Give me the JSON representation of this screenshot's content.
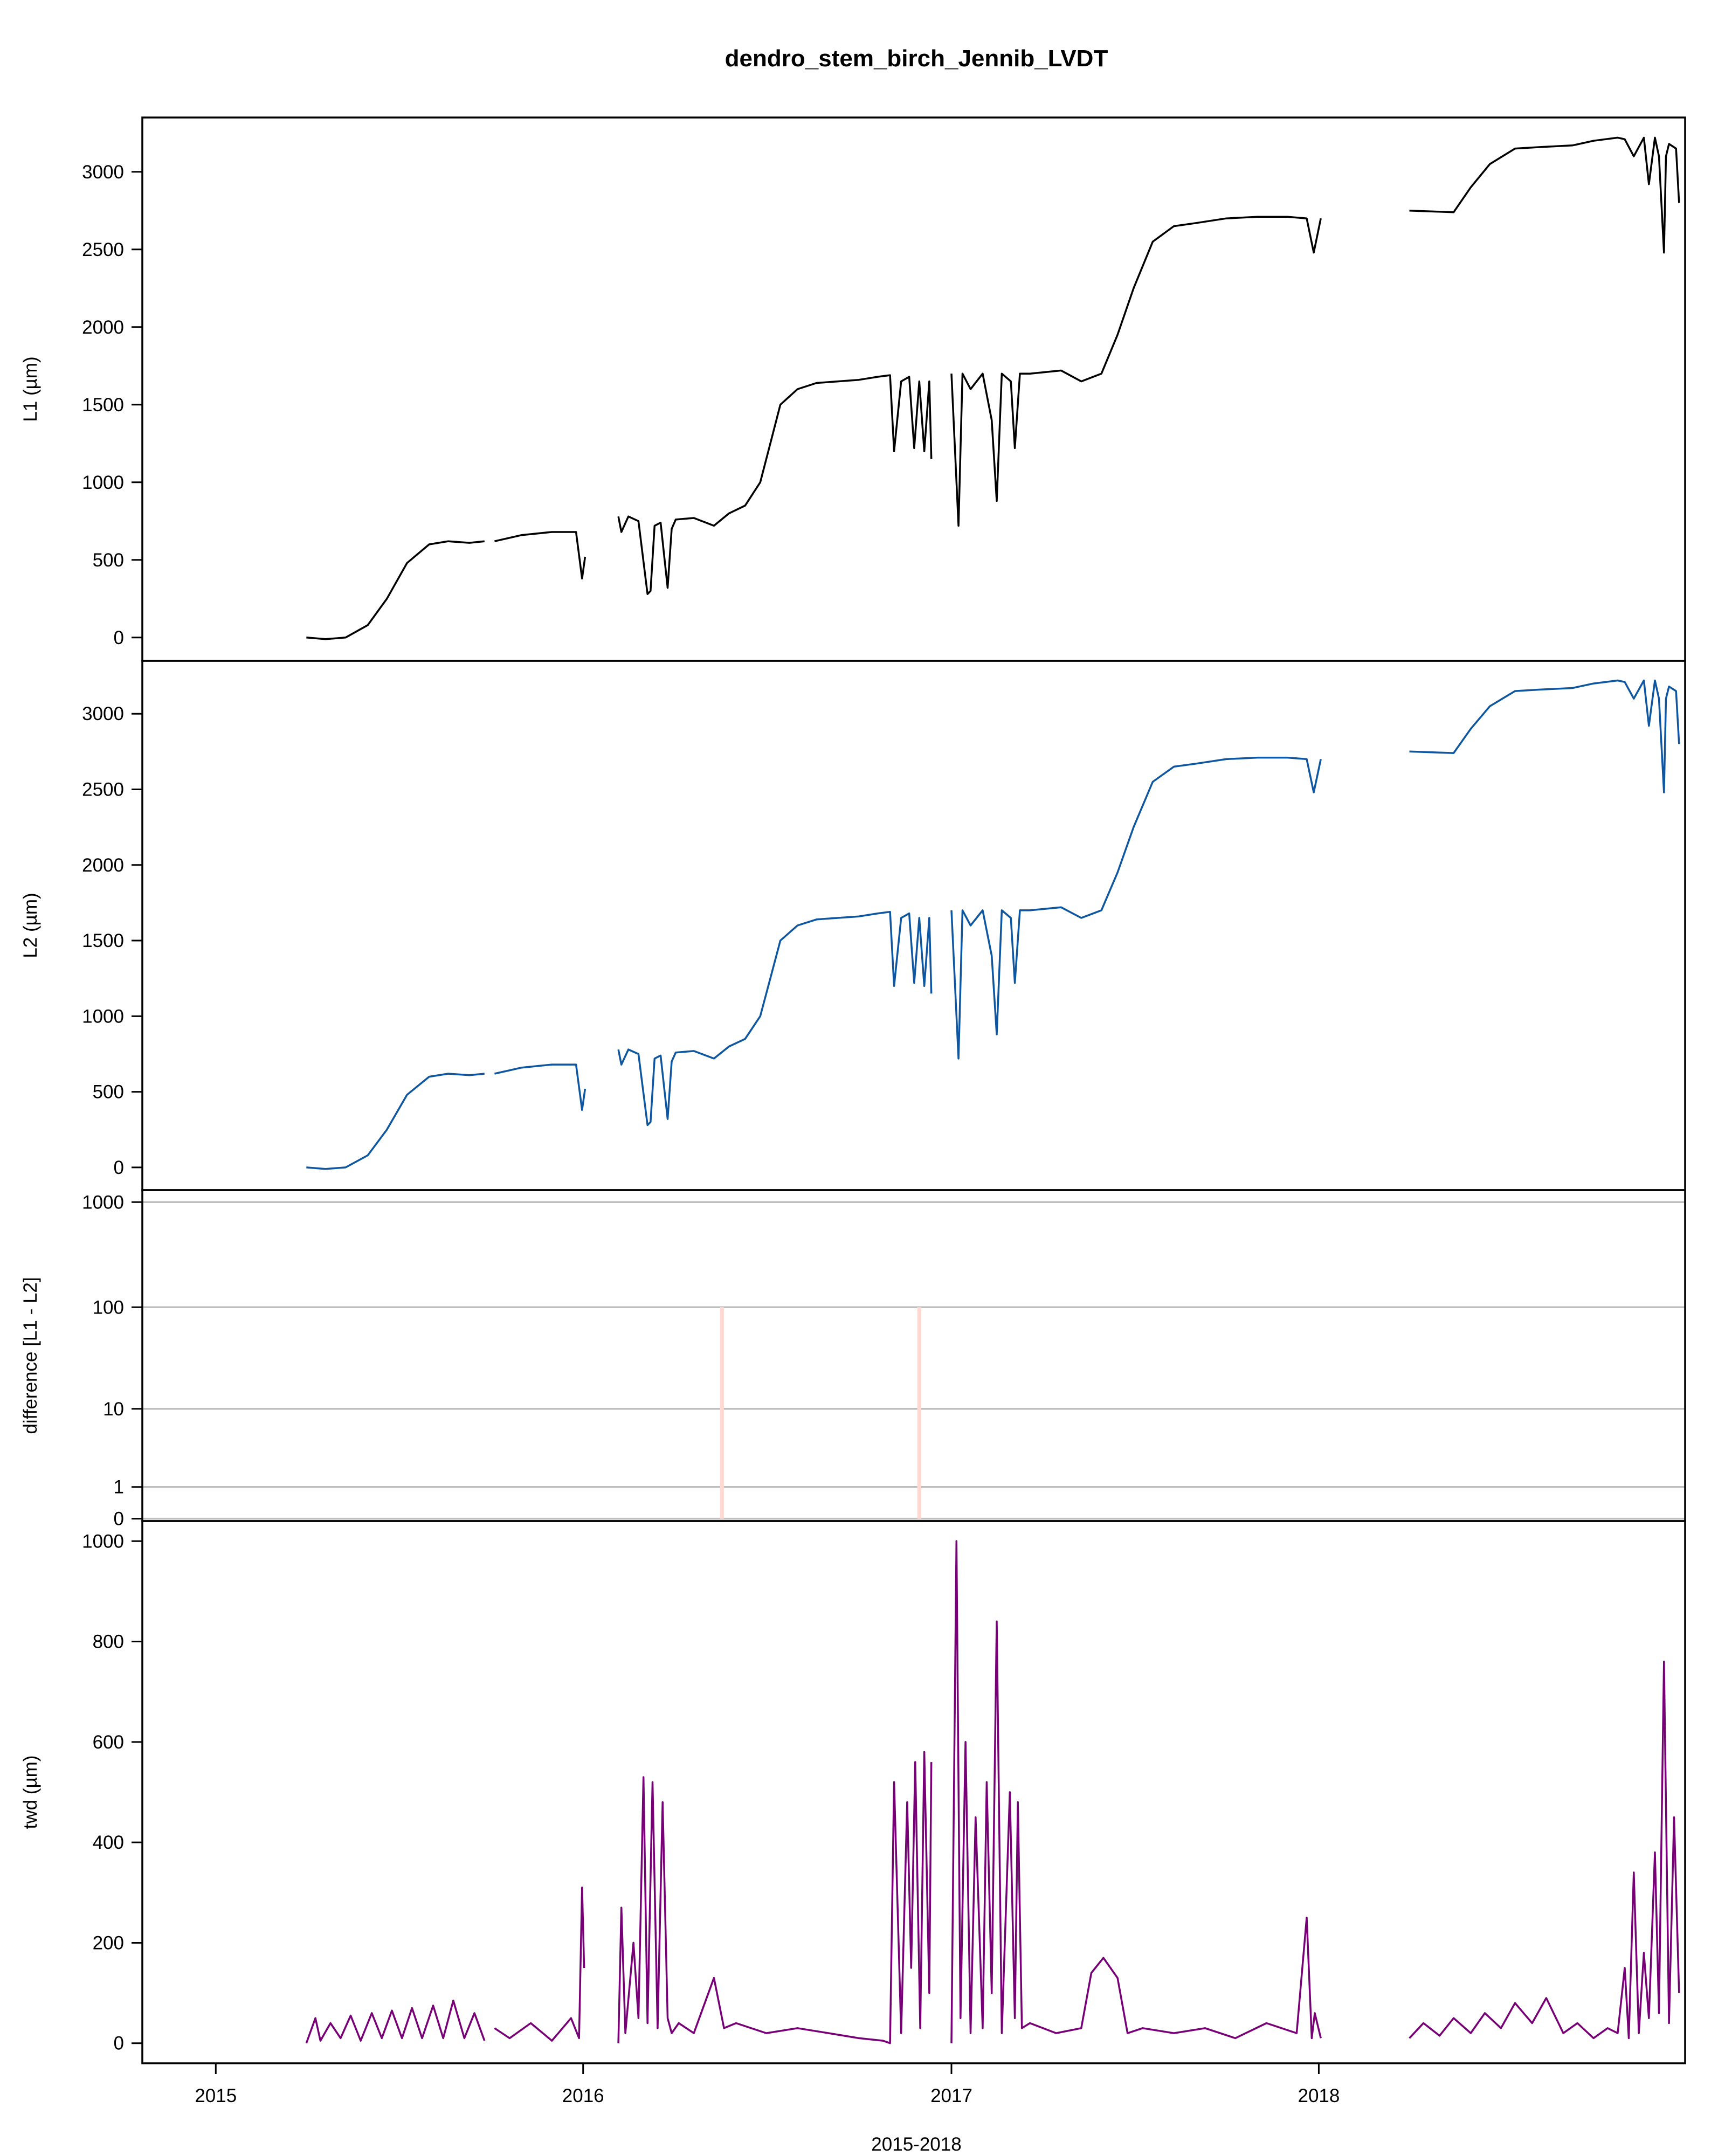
{
  "chart_data": {
    "type": "line",
    "title": "dendro_stem_birch_Jennib_LVDT",
    "xlabel": "2015-2018",
    "x_ticks": [
      "2015",
      "2016",
      "2017",
      "2018"
    ],
    "xlim": [
      "2014-10-20",
      "2018-12-31"
    ],
    "colors": {
      "L1": "#000000",
      "L2": "#0e56a0",
      "difference": "#ffd9d2",
      "twd": "#770077",
      "grid": "#bebebe"
    },
    "panels": [
      {
        "id": "L1",
        "ylabel": "L1 (µm)",
        "ylim": [
          -150,
          3350
        ],
        "y_ticks": [
          0,
          500,
          1000,
          1500,
          2000,
          2500,
          3000
        ],
        "segments": [
          {
            "x": [
              "2015-04-01",
              "2015-04-20",
              "2015-05-10",
              "2015-06-01",
              "2015-06-20",
              "2015-07-10",
              "2015-08-01",
              "2015-08-20",
              "2015-09-10",
              "2015-09-25"
            ],
            "y": [
              0,
              -10,
              0,
              80,
              250,
              480,
              600,
              620,
              610,
              620
            ]
          },
          {
            "x": [
              "2015-10-05",
              "2015-11-01",
              "2015-12-01",
              "2015-12-25",
              "2015-12-31",
              "2016-01-03"
            ],
            "y": [
              620,
              660,
              680,
              680,
              380,
              520
            ]
          },
          {
            "x": [
              "2016-02-05",
              "2016-02-08",
              "2016-02-15",
              "2016-02-25",
              "2016-03-05",
              "2016-03-08",
              "2016-03-12",
              "2016-03-18",
              "2016-03-25",
              "2016-03-29",
              "2016-04-02",
              "2016-04-20",
              "2016-05-10",
              "2016-05-25",
              "2016-06-10",
              "2016-06-25",
              "2016-07-05",
              "2016-07-15",
              "2016-08-01",
              "2016-08-20",
              "2016-09-10",
              "2016-10-01",
              "2016-10-20",
              "2016-11-01",
              "2016-11-05",
              "2016-11-12",
              "2016-11-20",
              "2016-11-25",
              "2016-11-30",
              "2016-12-05",
              "2016-12-10",
              "2016-12-12"
            ],
            "y": [
              780,
              680,
              780,
              750,
              280,
              300,
              720,
              740,
              320,
              700,
              760,
              770,
              720,
              800,
              850,
              1000,
              1250,
              1500,
              1600,
              1640,
              1650,
              1660,
              1680,
              1690,
              1200,
              1650,
              1680,
              1220,
              1650,
              1200,
              1650,
              1150
            ]
          },
          {
            "x": [
              "2017-01-01",
              "2017-01-08",
              "2017-01-12",
              "2017-01-20",
              "2017-02-01",
              "2017-02-10",
              "2017-02-15",
              "2017-02-20",
              "2017-03-01",
              "2017-03-05",
              "2017-03-10",
              "2017-03-20",
              "2017-04-20",
              "2017-05-10",
              "2017-05-30",
              "2017-06-15",
              "2017-07-01",
              "2017-07-20",
              "2017-08-10",
              "2017-09-01",
              "2017-10-01",
              "2017-11-01",
              "2017-12-01",
              "2017-12-20",
              "2017-12-27",
              "2018-01-03"
            ],
            "y": [
              1700,
              720,
              1700,
              1600,
              1700,
              1400,
              880,
              1700,
              1650,
              1220,
              1700,
              1700,
              1720,
              1650,
              1700,
              1950,
              2250,
              2550,
              2650,
              2670,
              2700,
              2710,
              2710,
              2700,
              2480,
              2700
            ]
          },
          {
            "x": [
              "2018-04-01",
              "2018-05-15",
              "2018-06-01",
              "2018-06-20",
              "2018-07-15",
              "2018-08-10",
              "2018-09-10",
              "2018-10-01",
              "2018-10-25",
              "2018-11-01",
              "2018-11-10",
              "2018-11-20",
              "2018-11-25",
              "2018-12-01",
              "2018-12-05",
              "2018-12-10",
              "2018-12-12",
              "2018-12-15",
              "2018-12-22",
              "2018-12-25"
            ],
            "y": [
              2750,
              2740,
              2900,
              3050,
              3150,
              3160,
              3170,
              3200,
              3220,
              3210,
              3100,
              3220,
              2920,
              3220,
              3100,
              2480,
              3100,
              3180,
              3150,
              2800
            ]
          }
        ]
      },
      {
        "id": "L2",
        "ylabel": "L2 (µm)",
        "ylim": [
          -150,
          3350
        ],
        "y_ticks": [
          0,
          500,
          1000,
          1500,
          2000,
          2500,
          3000
        ],
        "segments": [
          {
            "x": [
              "2015-04-01",
              "2015-04-20",
              "2015-05-10",
              "2015-06-01",
              "2015-06-20",
              "2015-07-10",
              "2015-08-01",
              "2015-08-20",
              "2015-09-10",
              "2015-09-25"
            ],
            "y": [
              0,
              -10,
              0,
              80,
              250,
              480,
              600,
              620,
              610,
              620
            ]
          },
          {
            "x": [
              "2015-10-05",
              "2015-11-01",
              "2015-12-01",
              "2015-12-25",
              "2015-12-31",
              "2016-01-03"
            ],
            "y": [
              620,
              660,
              680,
              680,
              380,
              520
            ]
          },
          {
            "x": [
              "2016-02-05",
              "2016-02-08",
              "2016-02-15",
              "2016-02-25",
              "2016-03-05",
              "2016-03-08",
              "2016-03-12",
              "2016-03-18",
              "2016-03-25",
              "2016-03-29",
              "2016-04-02",
              "2016-04-20",
              "2016-05-10",
              "2016-05-25",
              "2016-06-10",
              "2016-06-25",
              "2016-07-05",
              "2016-07-15",
              "2016-08-01",
              "2016-08-20",
              "2016-09-10",
              "2016-10-01",
              "2016-10-20",
              "2016-11-01",
              "2016-11-05",
              "2016-11-12",
              "2016-11-20",
              "2016-11-25",
              "2016-11-30",
              "2016-12-05",
              "2016-12-10",
              "2016-12-12"
            ],
            "y": [
              780,
              680,
              780,
              750,
              280,
              300,
              720,
              740,
              320,
              700,
              760,
              770,
              720,
              800,
              850,
              1000,
              1250,
              1500,
              1600,
              1640,
              1650,
              1660,
              1680,
              1690,
              1200,
              1650,
              1680,
              1220,
              1650,
              1200,
              1650,
              1150
            ]
          },
          {
            "x": [
              "2017-01-01",
              "2017-01-08",
              "2017-01-12",
              "2017-01-20",
              "2017-02-01",
              "2017-02-10",
              "2017-02-15",
              "2017-02-20",
              "2017-03-01",
              "2017-03-05",
              "2017-03-10",
              "2017-03-20",
              "2017-04-20",
              "2017-05-10",
              "2017-05-30",
              "2017-06-15",
              "2017-07-01",
              "2017-07-20",
              "2017-08-10",
              "2017-09-01",
              "2017-10-01",
              "2017-11-01",
              "2017-12-01",
              "2017-12-20",
              "2017-12-27",
              "2018-01-03"
            ],
            "y": [
              1700,
              720,
              1700,
              1600,
              1700,
              1400,
              880,
              1700,
              1650,
              1220,
              1700,
              1700,
              1720,
              1650,
              1700,
              1950,
              2250,
              2550,
              2650,
              2670,
              2700,
              2710,
              2710,
              2700,
              2480,
              2700
            ]
          },
          {
            "x": [
              "2018-04-01",
              "2018-05-15",
              "2018-06-01",
              "2018-06-20",
              "2018-07-15",
              "2018-08-10",
              "2018-09-10",
              "2018-10-01",
              "2018-10-25",
              "2018-11-01",
              "2018-11-10",
              "2018-11-20",
              "2018-11-25",
              "2018-12-01",
              "2018-12-05",
              "2018-12-10",
              "2018-12-12",
              "2018-12-15",
              "2018-12-22",
              "2018-12-25"
            ],
            "y": [
              2750,
              2740,
              2900,
              3050,
              3150,
              3160,
              3170,
              3200,
              3220,
              3210,
              3100,
              3220,
              2920,
              3220,
              3100,
              2480,
              3100,
              3180,
              3150,
              2800
            ]
          }
        ]
      },
      {
        "id": "difference",
        "ylabel": "difference [L1 - L2]",
        "scale": "log1p",
        "ylim": [
          -0.05,
          1300
        ],
        "y_ticks": [
          0,
          1,
          10,
          100,
          1000
        ],
        "spikes": [
          {
            "x": "2016-05-18",
            "y": 100
          },
          {
            "x": "2016-11-30",
            "y": 100
          }
        ]
      },
      {
        "id": "twd",
        "ylabel": "twd (µm)",
        "ylim": [
          -40,
          1040
        ],
        "y_ticks": [
          0,
          200,
          400,
          600,
          800,
          1000
        ],
        "segments": [
          {
            "x": [
              "2015-04-01",
              "2015-04-10",
              "2015-04-15",
              "2015-04-25",
              "2015-05-05",
              "2015-05-15",
              "2015-05-25",
              "2015-06-05",
              "2015-06-15",
              "2015-06-25",
              "2015-07-05",
              "2015-07-15",
              "2015-07-25",
              "2015-08-05",
              "2015-08-15",
              "2015-08-25",
              "2015-09-05",
              "2015-09-15",
              "2015-09-25"
            ],
            "y": [
              0,
              50,
              5,
              40,
              10,
              55,
              5,
              60,
              10,
              65,
              10,
              70,
              10,
              75,
              10,
              85,
              10,
              60,
              5
            ]
          },
          {
            "x": [
              "2015-10-05",
              "2015-10-20",
              "2015-11-10",
              "2015-12-01",
              "2015-12-20",
              "2015-12-28",
              "2015-12-31",
              "2016-01-02"
            ],
            "y": [
              30,
              10,
              40,
              5,
              50,
              10,
              310,
              150
            ]
          },
          {
            "x": [
              "2016-02-05",
              "2016-02-08",
              "2016-02-12",
              "2016-02-20",
              "2016-02-25",
              "2016-03-01",
              "2016-03-05",
              "2016-03-10",
              "2016-03-15",
              "2016-03-20",
              "2016-03-25",
              "2016-03-29",
              "2016-04-05",
              "2016-04-20",
              "2016-05-10",
              "2016-05-20",
              "2016-06-01",
              "2016-07-01",
              "2016-08-01",
              "2016-09-01",
              "2016-10-01",
              "2016-10-25",
              "2016-11-01",
              "2016-11-05",
              "2016-11-12",
              "2016-11-18",
              "2016-11-22",
              "2016-11-26",
              "2016-12-01",
              "2016-12-05",
              "2016-12-10",
              "2016-12-12"
            ],
            "y": [
              0,
              270,
              20,
              200,
              50,
              530,
              40,
              520,
              30,
              480,
              50,
              20,
              40,
              20,
              130,
              30,
              40,
              20,
              30,
              20,
              10,
              5,
              0,
              520,
              20,
              480,
              150,
              560,
              30,
              580,
              100,
              560
            ]
          },
          {
            "x": [
              "2017-01-01",
              "2017-01-06",
              "2017-01-10",
              "2017-01-15",
              "2017-01-20",
              "2017-01-25",
              "2017-02-01",
              "2017-02-05",
              "2017-02-10",
              "2017-02-15",
              "2017-02-20",
              "2017-02-28",
              "2017-03-05",
              "2017-03-08",
              "2017-03-12",
              "2017-03-20",
              "2017-04-15",
              "2017-05-10",
              "2017-05-20",
              "2017-06-01",
              "2017-06-15",
              "2017-06-25",
              "2017-07-10",
              "2017-08-10",
              "2017-09-10",
              "2017-10-10",
              "2017-11-10",
              "2017-12-10",
              "2017-12-20",
              "2017-12-25",
              "2017-12-28",
              "2018-01-03"
            ],
            "y": [
              0,
              1000,
              50,
              600,
              20,
              450,
              30,
              520,
              100,
              840,
              20,
              500,
              50,
              480,
              30,
              40,
              20,
              30,
              140,
              170,
              130,
              20,
              30,
              20,
              30,
              10,
              40,
              20,
              250,
              10,
              60,
              10
            ]
          },
          {
            "x": [
              "2018-04-01",
              "2018-04-15",
              "2018-05-01",
              "2018-05-15",
              "2018-06-01",
              "2018-06-15",
              "2018-07-01",
              "2018-07-15",
              "2018-08-01",
              "2018-08-15",
              "2018-09-01",
              "2018-09-15",
              "2018-10-01",
              "2018-10-15",
              "2018-10-25",
              "2018-11-01",
              "2018-11-05",
              "2018-11-10",
              "2018-11-15",
              "2018-11-20",
              "2018-11-25",
              "2018-12-01",
              "2018-12-05",
              "2018-12-10",
              "2018-12-15",
              "2018-12-20",
              "2018-12-25"
            ],
            "y": [
              10,
              40,
              15,
              50,
              20,
              60,
              30,
              80,
              40,
              90,
              20,
              40,
              10,
              30,
              20,
              150,
              10,
              340,
              20,
              180,
              50,
              380,
              60,
              760,
              40,
              450,
              100
            ]
          }
        ]
      }
    ]
  }
}
